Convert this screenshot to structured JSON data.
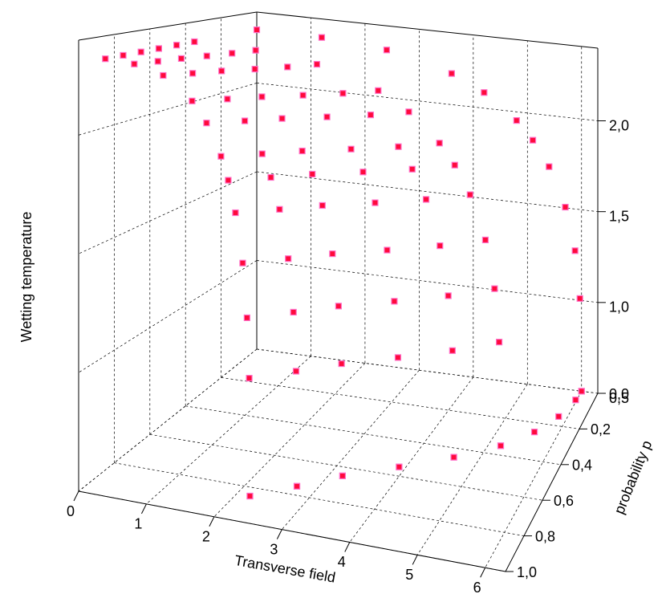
{
  "chart_data": {
    "type": "scatter3d",
    "x_label": "Transverse field",
    "y_label": "probability p",
    "z_label": "Wetting temperature",
    "xlim": [
      0,
      6.3
    ],
    "xticks": [
      0,
      1,
      2,
      3,
      4,
      5,
      6
    ],
    "ylim": [
      0,
      1
    ],
    "yticks": [
      {
        "value": 0,
        "label": "0,0"
      },
      {
        "value": 0.2,
        "label": "0,2"
      },
      {
        "value": 0.4,
        "label": "0,4"
      },
      {
        "value": 0.6,
        "label": "0,6"
      },
      {
        "value": 0.8,
        "label": "0,8"
      },
      {
        "value": 1,
        "label": "1,0"
      }
    ],
    "zlim": [
      0.5,
      2.4
    ],
    "zticks": [
      {
        "value": 0.5,
        "label": "0,5"
      },
      {
        "value": 1,
        "label": "1,0"
      },
      {
        "value": 1.5,
        "label": "1,5"
      },
      {
        "value": 2,
        "label": "2,0"
      }
    ],
    "grid": true,
    "color": "#ff0a3c",
    "edge_color": "#ff70c8",
    "series": [
      {
        "p": 0.85,
        "x": [
          0,
          0.44,
          0.88,
          1.32,
          1.54,
          1.76,
          1.87,
          1.98,
          2.09,
          2.156,
          2.189,
          2.2
        ],
        "z": [
          2.3,
          2.296,
          2.265,
          2.173,
          2.087,
          1.952,
          1.853,
          1.717,
          1.504,
          1.27,
          1.01,
          0.5
        ]
      },
      {
        "p": 0.75,
        "x": [
          0,
          0.54,
          1.08,
          1.62,
          1.89,
          2.16,
          2.295,
          2.43,
          2.565,
          2.646,
          2.687,
          2.7
        ],
        "z": [
          2.3,
          2.296,
          2.265,
          2.173,
          2.087,
          1.952,
          1.853,
          1.717,
          1.504,
          1.27,
          1.01,
          0.5
        ]
      },
      {
        "p": 0.65,
        "x": [
          0,
          0.64,
          1.28,
          1.92,
          2.24,
          2.56,
          2.72,
          2.88,
          3.04,
          3.136,
          3.184,
          3.2
        ],
        "z": [
          2.3,
          2.296,
          2.265,
          2.173,
          2.087,
          1.952,
          1.853,
          1.717,
          1.504,
          1.27,
          1.01,
          0.5
        ]
      },
      {
        "p": 0.55,
        "x": [
          0,
          0.78,
          1.56,
          2.34,
          2.73,
          3.12,
          3.315,
          3.51,
          3.705,
          3.822,
          3.881,
          3.9
        ],
        "z": [
          2.3,
          2.296,
          2.265,
          2.173,
          2.087,
          1.952,
          1.853,
          1.717,
          1.504,
          1.27,
          1.01,
          0.5
        ]
      },
      {
        "p": 0.45,
        "x": [
          0,
          0.92,
          1.84,
          2.76,
          3.22,
          3.68,
          3.91,
          4.14,
          4.37,
          4.508,
          4.577,
          4.6
        ],
        "z": [
          2.3,
          2.296,
          2.265,
          2.173,
          2.087,
          1.952,
          1.853,
          1.717,
          1.504,
          1.27,
          1.01,
          0.5
        ]
      },
      {
        "p": 0.35,
        "x": [
          0,
          1.04,
          2.08,
          3.12,
          3.64,
          4.16,
          4.42,
          4.68,
          4.94,
          5.096,
          5.174,
          5.2
        ],
        "z": [
          2.3,
          2.296,
          2.265,
          2.173,
          2.087,
          1.952,
          1.853,
          1.717,
          1.504,
          1.27,
          1.01,
          0.5
        ]
      },
      {
        "p": 0,
        "x": [
          0,
          1.2,
          2.4,
          3.6,
          4.2,
          4.8,
          5.1,
          5.4,
          5.7,
          5.88,
          5.97,
          6.0
        ],
        "z": [
          2.3,
          2.296,
          2.265,
          2.173,
          2.087,
          1.952,
          1.853,
          1.717,
          1.504,
          1.27,
          1.01,
          0.5
        ]
      }
    ],
    "floor_curve": {
      "p": [
        0.85,
        0.75,
        0.65,
        0.55,
        0.45,
        0.35,
        0.25,
        0.15,
        0.05,
        0
      ],
      "x": [
        2.2,
        2.7,
        3.2,
        3.9,
        4.6,
        5.2,
        5.6,
        5.85,
        5.98,
        6.0
      ]
    }
  }
}
